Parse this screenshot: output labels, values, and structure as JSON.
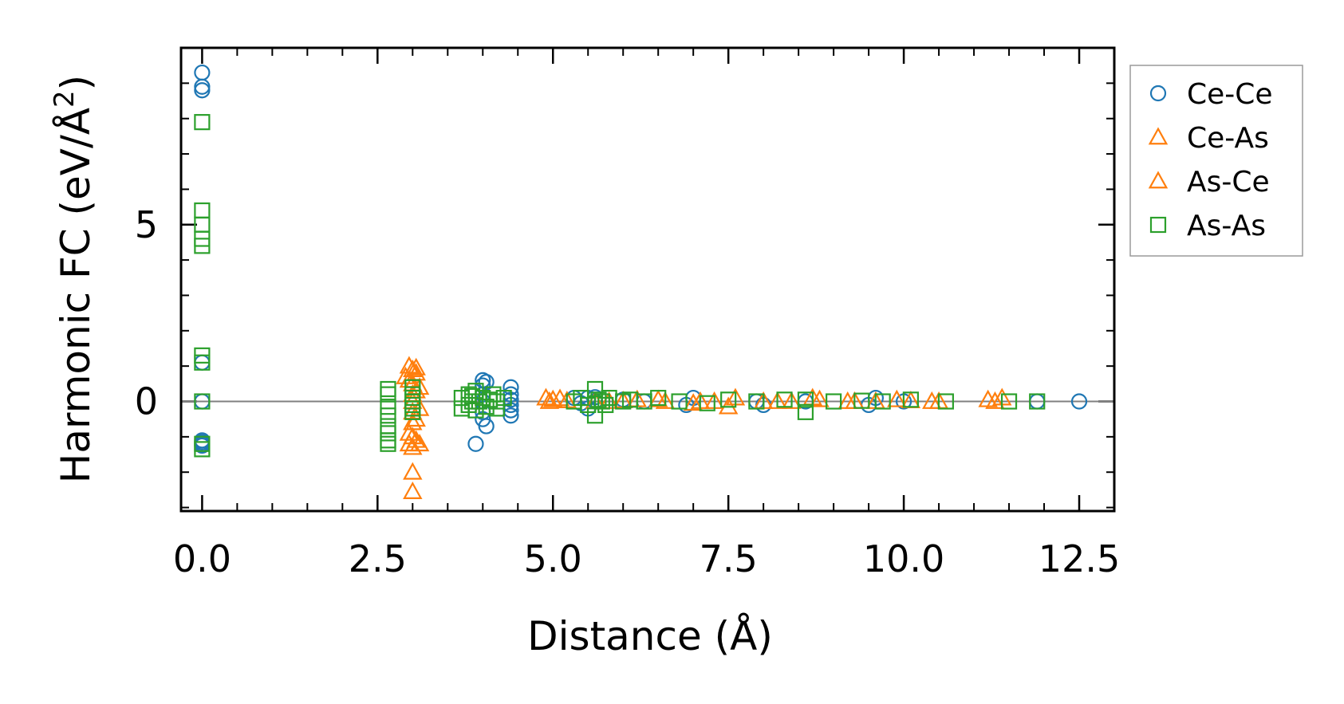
{
  "chart_data": {
    "type": "scatter",
    "title": "",
    "xlabel": "Distance (Å)",
    "ylabel_main": "Harmonic FC (eV/Å",
    "ylabel_sup": "2",
    "ylabel_end": ")",
    "xlim": [
      -0.3,
      13.0
    ],
    "ylim": [
      -3.1,
      10.0
    ],
    "xticks": [
      0.0,
      2.5,
      5.0,
      7.5,
      10.0,
      12.5
    ],
    "xtick_labels": [
      "0.0",
      "2.5",
      "5.0",
      "7.5",
      "10.0",
      "12.5"
    ],
    "yticks": [
      0,
      5
    ],
    "ytick_labels": [
      "0",
      "5"
    ],
    "grid": false,
    "zero_line": true,
    "legend_position": "outside-right-top",
    "series": [
      {
        "name": "Ce-Ce",
        "marker": "circle",
        "color": "#1f77b4",
        "x": [
          0,
          0,
          0,
          0,
          0,
          0,
          0,
          0,
          0,
          3.9,
          4.0,
          4.0,
          4.0,
          4.0,
          4.0,
          4.0,
          4.05,
          4.05,
          4.4,
          4.4,
          4.4,
          4.4,
          4.4,
          4.4,
          5.3,
          5.4,
          5.5,
          5.5,
          5.6,
          5.6,
          6.0,
          6.3,
          6.9,
          7.0,
          7.9,
          8.0,
          8.6,
          9.5,
          9.6,
          10.0,
          11.9,
          12.5
        ],
        "y": [
          9.3,
          8.9,
          8.8,
          1.1,
          0,
          -1.15,
          -1.25,
          -1.1,
          -1.2,
          -1.2,
          0.6,
          0.45,
          0.2,
          0,
          -0.3,
          -0.5,
          -0.7,
          0.55,
          0.4,
          0.2,
          0.05,
          -0.1,
          -0.25,
          -0.4,
          0.1,
          -0.05,
          0.1,
          -0.2,
          0,
          0.12,
          0.05,
          0,
          -0.1,
          0.1,
          0,
          -0.1,
          0,
          -0.1,
          0.1,
          0,
          0,
          0
        ]
      },
      {
        "name": "Ce-As",
        "marker": "triangle",
        "color": "#ff7f0e",
        "x": [
          2.95,
          2.95,
          2.95,
          3.0,
          3.0,
          3.0,
          3.0,
          3.0,
          3.0,
          3.0,
          3.0,
          3.0,
          3.05,
          3.05,
          3.05,
          3.05,
          4.9,
          5.0,
          5.2,
          5.8,
          6.2,
          6.6,
          7.0,
          7.3,
          7.6,
          8.0,
          8.4,
          8.8,
          9.2,
          9.6,
          10.1,
          10.5,
          11.2,
          11.4
        ],
        "y": [
          1.0,
          0.6,
          -1.2,
          0.9,
          0.5,
          0.2,
          0,
          -0.3,
          -0.6,
          -1.0,
          -2.0,
          -2.55,
          0.8,
          0.3,
          -0.5,
          -1.1,
          0.1,
          0.05,
          0.02,
          0,
          0.05,
          0,
          -0.05,
          0,
          0.1,
          0,
          0,
          0.05,
          0,
          0,
          0.02,
          0,
          0.05,
          0.1
        ]
      },
      {
        "name": "As-Ce",
        "marker": "triangle",
        "color": "#ff7f0e",
        "x": [
          2.9,
          2.95,
          3.0,
          3.05,
          3.1,
          3.1,
          3.1,
          4.95,
          5.1,
          5.6,
          6.0,
          6.5,
          7.1,
          7.5,
          8.2,
          8.7,
          9.3,
          9.9,
          10.4,
          11.3
        ],
        "y": [
          0.7,
          -0.9,
          -1.3,
          0.95,
          0.4,
          -0.2,
          -1.2,
          0,
          0.08,
          0,
          0.02,
          0.05,
          0,
          -0.15,
          0,
          0.1,
          0,
          0.05,
          0,
          0
        ]
      },
      {
        "name": "As-As",
        "marker": "square",
        "color": "#2ca02c",
        "x": [
          0,
          0,
          0,
          0,
          0,
          0,
          0,
          0,
          0,
          0,
          2.65,
          2.65,
          2.65,
          2.65,
          2.65,
          2.65,
          2.65,
          2.65,
          3.0,
          3.0,
          3.0,
          3.0,
          3.0,
          3.0,
          3.0,
          3.7,
          3.7,
          3.8,
          3.8,
          3.85,
          3.85,
          3.9,
          3.9,
          3.95,
          4.0,
          4.05,
          4.1,
          4.15,
          4.2,
          4.2,
          4.3,
          5.3,
          5.4,
          5.5,
          5.6,
          5.6,
          5.65,
          5.7,
          5.75,
          5.8,
          6.0,
          6.1,
          6.3,
          6.5,
          6.8,
          7.2,
          7.5,
          7.9,
          8.3,
          8.6,
          8.6,
          9.0,
          9.4,
          9.7,
          10.1,
          10.6,
          11.5,
          11.9
        ],
        "y": [
          7.9,
          5.4,
          5.0,
          4.6,
          4.4,
          1.3,
          1.1,
          0,
          -1.2,
          -1.35,
          0.35,
          0.2,
          -0.15,
          -0.4,
          -0.7,
          -0.9,
          -1.1,
          -1.2,
          0.4,
          0.2,
          0,
          -0.2,
          -0.3,
          -0.1,
          0.1,
          0.1,
          -0.2,
          0.2,
          -0.1,
          0,
          0.15,
          0.3,
          -0.25,
          0,
          0.1,
          -0.15,
          0.05,
          0.2,
          -0.2,
          0,
          0.1,
          0,
          0.1,
          -0.1,
          0.35,
          -0.4,
          0.05,
          0,
          -0.1,
          0.1,
          0,
          0.05,
          0,
          0.1,
          0,
          -0.05,
          0.05,
          0,
          0.05,
          0.05,
          -0.3,
          0,
          0.02,
          0,
          0.05,
          0,
          0,
          0
        ]
      }
    ]
  }
}
